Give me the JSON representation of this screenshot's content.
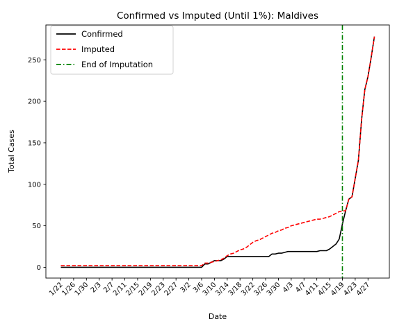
{
  "chart_data": {
    "type": "line",
    "title": "Confirmed vs Imputed (Until 1%): Maldives",
    "xlabel": "Date",
    "ylabel": "Total Cases",
    "grid": false,
    "legend_position": "top-left",
    "ylim": [
      -13,
      292
    ],
    "yticks": [
      0,
      50,
      100,
      150,
      200,
      250
    ],
    "xticks": [
      {
        "index": 0,
        "label": "1/22"
      },
      {
        "index": 4,
        "label": "1/26"
      },
      {
        "index": 8,
        "label": "1/30"
      },
      {
        "index": 12,
        "label": "2/3"
      },
      {
        "index": 16,
        "label": "2/7"
      },
      {
        "index": 20,
        "label": "2/11"
      },
      {
        "index": 24,
        "label": "2/15"
      },
      {
        "index": 28,
        "label": "2/19"
      },
      {
        "index": 32,
        "label": "2/23"
      },
      {
        "index": 36,
        "label": "2/27"
      },
      {
        "index": 40,
        "label": "3/2"
      },
      {
        "index": 44,
        "label": "3/6"
      },
      {
        "index": 48,
        "label": "3/10"
      },
      {
        "index": 52,
        "label": "3/14"
      },
      {
        "index": 56,
        "label": "3/18"
      },
      {
        "index": 60,
        "label": "3/22"
      },
      {
        "index": 64,
        "label": "3/26"
      },
      {
        "index": 68,
        "label": "3/30"
      },
      {
        "index": 72,
        "label": "4/3"
      },
      {
        "index": 76,
        "label": "4/7"
      },
      {
        "index": 80,
        "label": "4/11"
      },
      {
        "index": 84,
        "label": "4/15"
      },
      {
        "index": 88,
        "label": "4/19"
      },
      {
        "index": 92,
        "label": "4/23"
      },
      {
        "index": 96,
        "label": "4/27"
      }
    ],
    "vline": {
      "name": "End of Imputation",
      "x": "4/19",
      "index": 88,
      "color": "#008000"
    },
    "series": [
      {
        "name": "Confirmed",
        "color": "#000000",
        "style": "solid",
        "x_start": "1/22",
        "values": [
          0,
          0,
          0,
          0,
          0,
          0,
          0,
          0,
          0,
          0,
          0,
          0,
          0,
          0,
          0,
          0,
          0,
          0,
          0,
          0,
          0,
          0,
          0,
          0,
          0,
          0,
          0,
          0,
          0,
          0,
          0,
          0,
          0,
          0,
          0,
          0,
          0,
          0,
          0,
          0,
          0,
          0,
          0,
          0,
          0,
          4,
          4,
          6,
          8,
          8,
          8,
          10,
          13,
          13,
          13,
          13,
          13,
          13,
          13,
          13,
          13,
          13,
          13,
          13,
          13,
          13,
          16,
          16,
          17,
          17,
          18,
          19,
          19,
          19,
          19,
          19,
          19,
          19,
          19,
          19,
          19,
          20,
          20,
          20,
          22,
          25,
          28,
          34,
          52,
          68,
          82,
          85,
          107,
          129,
          178,
          214,
          230,
          253,
          278
        ]
      },
      {
        "name": "Imputed",
        "color": "#ff0000",
        "style": "dashed",
        "x_start": "1/22",
        "values": [
          2,
          2,
          2,
          2,
          2,
          2,
          2,
          2,
          2,
          2,
          2,
          2,
          2,
          2,
          2,
          2,
          2,
          2,
          2,
          2,
          2,
          2,
          2,
          2,
          2,
          2,
          2,
          2,
          2,
          2,
          2,
          2,
          2,
          2,
          2,
          2,
          2,
          2,
          2,
          2,
          2,
          2,
          2,
          2,
          2,
          5,
          5,
          6,
          7,
          8,
          9,
          11,
          14,
          16,
          17,
          19,
          21,
          22,
          24,
          27,
          30,
          32,
          33,
          35,
          37,
          39,
          41,
          42,
          44,
          45,
          47,
          48,
          50,
          51,
          52,
          53,
          54,
          55,
          56,
          57,
          58,
          58,
          59,
          60,
          61,
          63,
          65,
          67,
          68,
          68,
          82,
          85,
          107,
          129,
          178,
          214,
          230,
          253,
          278
        ]
      }
    ]
  }
}
